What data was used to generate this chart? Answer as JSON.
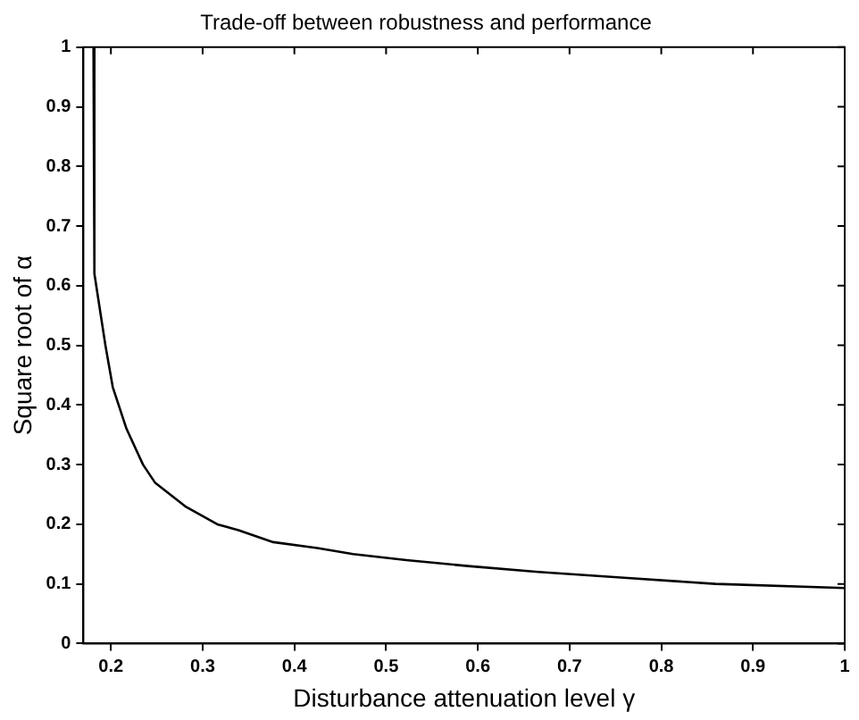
{
  "chart_data": {
    "type": "line",
    "title": "Trade-off between robustness and performance",
    "xlabel": "Disturbance attenuation level γ",
    "ylabel": "Square root of α",
    "x": [
      0.181,
      0.182,
      0.194,
      0.202,
      0.217,
      0.235,
      0.248,
      0.281,
      0.316,
      0.339,
      0.377,
      0.425,
      0.464,
      0.522,
      0.589,
      0.666,
      0.763,
      0.859,
      1.0
    ],
    "series": [
      {
        "color": "#000000",
        "values": [
          1.0,
          0.62,
          0.5,
          0.43,
          0.36,
          0.3,
          0.27,
          0.23,
          0.2,
          0.19,
          0.17,
          0.16,
          0.15,
          0.14,
          0.13,
          0.12,
          0.11,
          0.1,
          0.093
        ]
      }
    ],
    "xlim": [
      0.17,
      1
    ],
    "xticks": [
      0.2,
      0.3,
      0.4,
      0.5,
      0.6,
      0.7,
      0.8,
      0.9,
      1
    ],
    "ylim": [
      0,
      1
    ],
    "yticks": [
      0,
      0.1,
      0.2,
      0.3,
      0.4,
      0.5,
      0.6,
      0.7,
      0.8,
      0.9,
      1
    ],
    "grid": false,
    "legend": false,
    "marker": "none",
    "line_style": "solid"
  }
}
